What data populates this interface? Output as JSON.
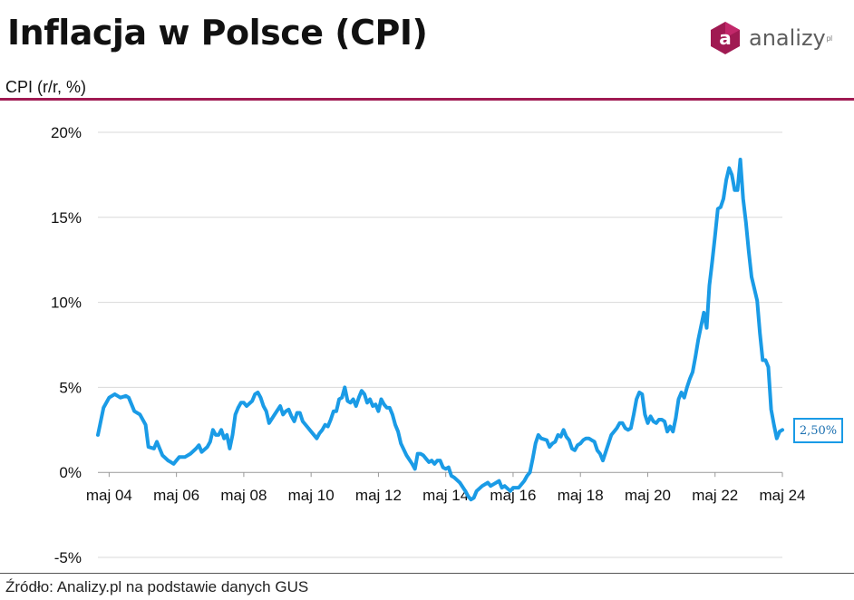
{
  "header": {
    "title": "Inflacja w Polsce (CPI)",
    "subtitle": "CPI (r/r, %)",
    "logo_text": "analizy",
    "logo_sup": "pl",
    "logo_mark": "a"
  },
  "footer": {
    "source": "Źródło: Analizy.pl na podstawie danych GUS"
  },
  "colors": {
    "line": "#1a9be6",
    "accent": "#a01a52",
    "grid": "#d9d9d9"
  },
  "chart_data": {
    "type": "line",
    "x_start": "2004-01",
    "x_end": "2024-05",
    "ylim": [
      -5,
      20
    ],
    "yticks": [
      {
        "v": 20,
        "label": "20%"
      },
      {
        "v": 15,
        "label": "15%"
      },
      {
        "v": 10,
        "label": "10%"
      },
      {
        "v": 5,
        "label": "5%"
      },
      {
        "v": 0,
        "label": "0%"
      },
      {
        "v": -5,
        "label": "-5%"
      }
    ],
    "xticks": [
      {
        "date": "2004-05",
        "label": "maj 04"
      },
      {
        "date": "2006-05",
        "label": "maj 06"
      },
      {
        "date": "2008-05",
        "label": "maj 08"
      },
      {
        "date": "2010-05",
        "label": "maj 10"
      },
      {
        "date": "2012-05",
        "label": "maj 12"
      },
      {
        "date": "2014-05",
        "label": "maj 14"
      },
      {
        "date": "2016-05",
        "label": "maj 16"
      },
      {
        "date": "2018-05",
        "label": "maj 18"
      },
      {
        "date": "2020-05",
        "label": "maj 20"
      },
      {
        "date": "2022-05",
        "label": "maj 22"
      },
      {
        "date": "2024-05",
        "label": "maj 24"
      }
    ],
    "series": [
      {
        "points": [
          [
            "2004-01",
            2.2
          ],
          [
            "2004-03",
            3.8
          ],
          [
            "2004-05",
            4.4
          ],
          [
            "2004-07",
            4.6
          ],
          [
            "2004-09",
            4.4
          ],
          [
            "2004-11",
            4.5
          ],
          [
            "2004-12",
            4.4
          ],
          [
            "2005-02",
            3.6
          ],
          [
            "2005-04",
            3.4
          ],
          [
            "2005-06",
            2.8
          ],
          [
            "2005-07",
            1.5
          ],
          [
            "2005-09",
            1.4
          ],
          [
            "2005-10",
            1.8
          ],
          [
            "2005-12",
            1.0
          ],
          [
            "2006-02",
            0.7
          ],
          [
            "2006-03",
            0.6
          ],
          [
            "2006-04",
            0.5
          ],
          [
            "2006-06",
            0.9
          ],
          [
            "2006-08",
            0.9
          ],
          [
            "2006-10",
            1.1
          ],
          [
            "2006-12",
            1.4
          ],
          [
            "2007-01",
            1.6
          ],
          [
            "2007-02",
            1.2
          ],
          [
            "2007-04",
            1.5
          ],
          [
            "2007-05",
            1.8
          ],
          [
            "2007-06",
            2.5
          ],
          [
            "2007-07",
            2.2
          ],
          [
            "2007-08",
            2.2
          ],
          [
            "2007-09",
            2.5
          ],
          [
            "2007-10",
            2.0
          ],
          [
            "2007-11",
            2.2
          ],
          [
            "2007-12",
            1.4
          ],
          [
            "2008-01",
            2.2
          ],
          [
            "2008-02",
            3.4
          ],
          [
            "2008-03",
            3.8
          ],
          [
            "2008-04",
            4.1
          ],
          [
            "2008-05",
            4.1
          ],
          [
            "2008-06",
            3.9
          ],
          [
            "2008-08",
            4.2
          ],
          [
            "2008-09",
            4.6
          ],
          [
            "2008-10",
            4.7
          ],
          [
            "2008-11",
            4.4
          ],
          [
            "2008-12",
            3.9
          ],
          [
            "2009-01",
            3.6
          ],
          [
            "2009-02",
            2.9
          ],
          [
            "2009-04",
            3.4
          ],
          [
            "2009-06",
            3.9
          ],
          [
            "2009-07",
            3.4
          ],
          [
            "2009-08",
            3.6
          ],
          [
            "2009-09",
            3.7
          ],
          [
            "2009-10",
            3.3
          ],
          [
            "2009-11",
            3.0
          ],
          [
            "2009-12",
            3.5
          ],
          [
            "2010-01",
            3.5
          ],
          [
            "2010-02",
            3.0
          ],
          [
            "2010-04",
            2.6
          ],
          [
            "2010-05",
            2.4
          ],
          [
            "2010-07",
            2.0
          ],
          [
            "2010-08",
            2.3
          ],
          [
            "2010-09",
            2.5
          ],
          [
            "2010-10",
            2.8
          ],
          [
            "2010-11",
            2.7
          ],
          [
            "2010-12",
            3.1
          ],
          [
            "2011-01",
            3.6
          ],
          [
            "2011-02",
            3.6
          ],
          [
            "2011-03",
            4.3
          ],
          [
            "2011-04",
            4.4
          ],
          [
            "2011-05",
            5.0
          ],
          [
            "2011-06",
            4.2
          ],
          [
            "2011-07",
            4.1
          ],
          [
            "2011-08",
            4.3
          ],
          [
            "2011-09",
            3.9
          ],
          [
            "2011-10",
            4.4
          ],
          [
            "2011-11",
            4.8
          ],
          [
            "2011-12",
            4.6
          ],
          [
            "2012-01",
            4.1
          ],
          [
            "2012-02",
            4.3
          ],
          [
            "2012-03",
            3.9
          ],
          [
            "2012-04",
            4.0
          ],
          [
            "2012-05",
            3.6
          ],
          [
            "2012-06",
            4.3
          ],
          [
            "2012-07",
            4.0
          ],
          [
            "2012-08",
            3.8
          ],
          [
            "2012-09",
            3.8
          ],
          [
            "2012-10",
            3.4
          ],
          [
            "2012-11",
            2.8
          ],
          [
            "2012-12",
            2.4
          ],
          [
            "2013-01",
            1.7
          ],
          [
            "2013-03",
            1.0
          ],
          [
            "2013-05",
            0.5
          ],
          [
            "2013-06",
            0.2
          ],
          [
            "2013-07",
            1.1
          ],
          [
            "2013-08",
            1.1
          ],
          [
            "2013-09",
            1.0
          ],
          [
            "2013-10",
            0.8
          ],
          [
            "2013-11",
            0.6
          ],
          [
            "2013-12",
            0.7
          ],
          [
            "2014-01",
            0.5
          ],
          [
            "2014-02",
            0.7
          ],
          [
            "2014-03",
            0.7
          ],
          [
            "2014-04",
            0.3
          ],
          [
            "2014-05",
            0.2
          ],
          [
            "2014-06",
            0.3
          ],
          [
            "2014-07",
            -0.2
          ],
          [
            "2014-08",
            -0.3
          ],
          [
            "2014-10",
            -0.6
          ],
          [
            "2014-12",
            -1.1
          ],
          [
            "2015-01",
            -1.4
          ],
          [
            "2015-02",
            -1.6
          ],
          [
            "2015-03",
            -1.5
          ],
          [
            "2015-04",
            -1.1
          ],
          [
            "2015-06",
            -0.8
          ],
          [
            "2015-08",
            -0.6
          ],
          [
            "2015-09",
            -0.8
          ],
          [
            "2015-10",
            -0.7
          ],
          [
            "2015-11",
            -0.6
          ],
          [
            "2015-12",
            -0.5
          ],
          [
            "2016-01",
            -0.9
          ],
          [
            "2016-02",
            -0.8
          ],
          [
            "2016-04",
            -1.1
          ],
          [
            "2016-05",
            -0.9
          ],
          [
            "2016-07",
            -0.9
          ],
          [
            "2016-09",
            -0.5
          ],
          [
            "2016-10",
            -0.2
          ],
          [
            "2016-11",
            0.0
          ],
          [
            "2016-12",
            0.8
          ],
          [
            "2017-01",
            1.7
          ],
          [
            "2017-02",
            2.2
          ],
          [
            "2017-03",
            2.0
          ],
          [
            "2017-05",
            1.9
          ],
          [
            "2017-06",
            1.5
          ],
          [
            "2017-07",
            1.7
          ],
          [
            "2017-08",
            1.8
          ],
          [
            "2017-09",
            2.2
          ],
          [
            "2017-10",
            2.1
          ],
          [
            "2017-11",
            2.5
          ],
          [
            "2017-12",
            2.1
          ],
          [
            "2018-01",
            1.9
          ],
          [
            "2018-02",
            1.4
          ],
          [
            "2018-03",
            1.3
          ],
          [
            "2018-04",
            1.6
          ],
          [
            "2018-05",
            1.7
          ],
          [
            "2018-06",
            1.9
          ],
          [
            "2018-07",
            2.0
          ],
          [
            "2018-08",
            2.0
          ],
          [
            "2018-09",
            1.9
          ],
          [
            "2018-10",
            1.8
          ],
          [
            "2018-11",
            1.3
          ],
          [
            "2018-12",
            1.1
          ],
          [
            "2019-01",
            0.7
          ],
          [
            "2019-02",
            1.2
          ],
          [
            "2019-03",
            1.7
          ],
          [
            "2019-04",
            2.2
          ],
          [
            "2019-05",
            2.4
          ],
          [
            "2019-06",
            2.6
          ],
          [
            "2019-07",
            2.9
          ],
          [
            "2019-08",
            2.9
          ],
          [
            "2019-09",
            2.6
          ],
          [
            "2019-10",
            2.5
          ],
          [
            "2019-11",
            2.6
          ],
          [
            "2019-12",
            3.4
          ],
          [
            "2020-01",
            4.3
          ],
          [
            "2020-02",
            4.7
          ],
          [
            "2020-03",
            4.6
          ],
          [
            "2020-04",
            3.4
          ],
          [
            "2020-05",
            2.9
          ],
          [
            "2020-06",
            3.3
          ],
          [
            "2020-07",
            3.0
          ],
          [
            "2020-08",
            2.9
          ],
          [
            "2020-09",
            3.1
          ],
          [
            "2020-10",
            3.1
          ],
          [
            "2020-11",
            3.0
          ],
          [
            "2020-12",
            2.4
          ],
          [
            "2021-01",
            2.7
          ],
          [
            "2021-02",
            2.4
          ],
          [
            "2021-03",
            3.2
          ],
          [
            "2021-04",
            4.3
          ],
          [
            "2021-05",
            4.7
          ],
          [
            "2021-06",
            4.4
          ],
          [
            "2021-07",
            5.0
          ],
          [
            "2021-08",
            5.5
          ],
          [
            "2021-09",
            5.9
          ],
          [
            "2021-10",
            6.8
          ],
          [
            "2021-11",
            7.8
          ],
          [
            "2021-12",
            8.6
          ],
          [
            "2022-01",
            9.4
          ],
          [
            "2022-02",
            8.5
          ],
          [
            "2022-03",
            11.0
          ],
          [
            "2022-04",
            12.4
          ],
          [
            "2022-05",
            13.9
          ],
          [
            "2022-06",
            15.5
          ],
          [
            "2022-07",
            15.6
          ],
          [
            "2022-08",
            16.1
          ],
          [
            "2022-09",
            17.2
          ],
          [
            "2022-10",
            17.9
          ],
          [
            "2022-11",
            17.5
          ],
          [
            "2022-12",
            16.6
          ],
          [
            "2023-01",
            16.6
          ],
          [
            "2023-02",
            18.4
          ],
          [
            "2023-03",
            16.1
          ],
          [
            "2023-04",
            14.7
          ],
          [
            "2023-05",
            13.0
          ],
          [
            "2023-06",
            11.5
          ],
          [
            "2023-07",
            10.8
          ],
          [
            "2023-08",
            10.1
          ],
          [
            "2023-09",
            8.2
          ],
          [
            "2023-10",
            6.6
          ],
          [
            "2023-11",
            6.6
          ],
          [
            "2023-12",
            6.2
          ],
          [
            "2024-01",
            3.7
          ],
          [
            "2024-02",
            2.8
          ],
          [
            "2024-03",
            2.0
          ],
          [
            "2024-04",
            2.4
          ],
          [
            "2024-05",
            2.5
          ]
        ]
      }
    ],
    "annotation": {
      "label": "2,50%"
    }
  }
}
